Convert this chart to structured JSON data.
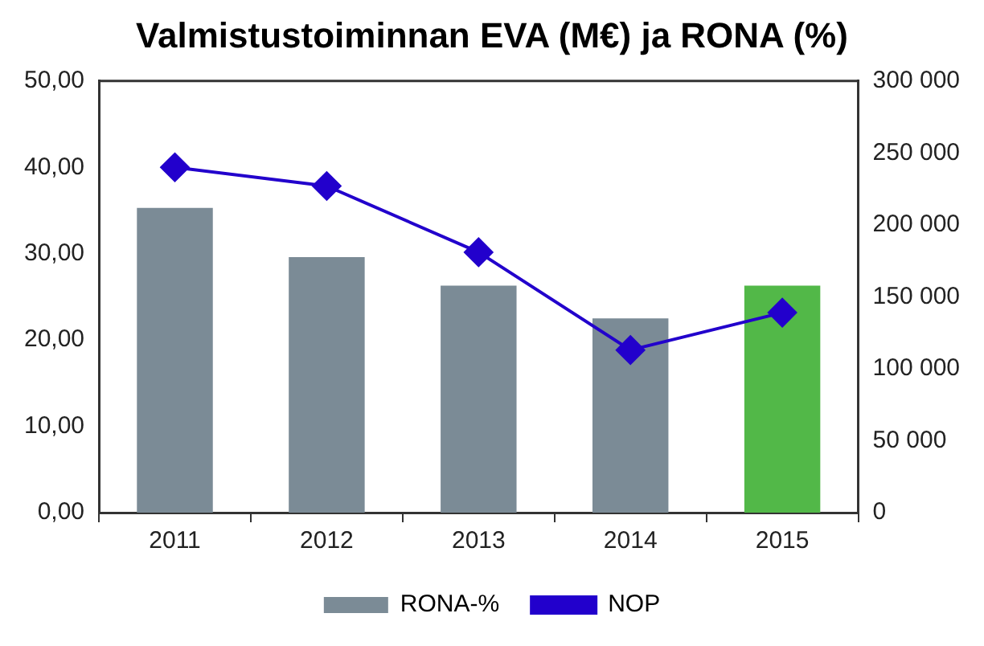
{
  "chart_data": {
    "type": "bar",
    "title": "Valmistustoiminnan EVA (M€) ja RONA (%)",
    "categories": [
      "2011",
      "2012",
      "2013",
      "2014",
      "2015"
    ],
    "series": [
      {
        "name": "RONA-%",
        "color": "#7b8b96",
        "colors": [
          "#7b8b96",
          "#7b8b96",
          "#7b8b96",
          "#7b8b96",
          "#52b848"
        ],
        "values": [
          35.3,
          29.6,
          26.3,
          22.5,
          26.3
        ]
      },
      {
        "name": "NOP",
        "type": "line",
        "axis": "y2",
        "color": "#2200cc",
        "marker": "diamond",
        "values": [
          240000,
          227000,
          181000,
          113000,
          139000
        ]
      }
    ],
    "ylim": [
      0,
      50
    ],
    "yticks": [
      {
        "value": 0,
        "label": "0,00"
      },
      {
        "value": 10,
        "label": "10,00"
      },
      {
        "value": 20,
        "label": "20,00"
      },
      {
        "value": 30,
        "label": "30,00"
      },
      {
        "value": 40,
        "label": "40,00"
      },
      {
        "value": 50,
        "label": "50,00"
      }
    ],
    "y2lim": [
      0,
      300000
    ],
    "y2ticks": [
      0,
      {
        "value": 50000,
        "label": "50 000"
      },
      {
        "value": 100000,
        "label": "100 000"
      },
      {
        "value": 150000,
        "label": "150 000"
      },
      {
        "value": 200000,
        "label": "200 000"
      },
      {
        "value": 250000,
        "label": "250 000"
      },
      {
        "value": 300000,
        "label": "300 000"
      }
    ],
    "grid": false,
    "legend": "bottom"
  }
}
